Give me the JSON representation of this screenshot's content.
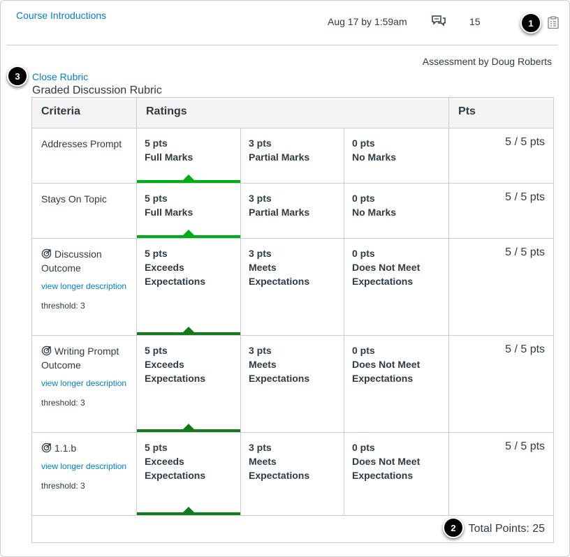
{
  "header": {
    "title_link": "Course Introductions",
    "date": "Aug 17 by 1:59am",
    "reply_count": "15",
    "reply_icon": "discussion-reply-icon",
    "rubric_icon": "rubric-clipboard-icon"
  },
  "callouts": [
    "1",
    "2",
    "3"
  ],
  "assessment_by": "Assessment by Doug Roberts",
  "close_rubric": "Close Rubric",
  "rubric_title": "Graded Discussion Rubric",
  "columns": {
    "criteria": "Criteria",
    "ratings": "Ratings",
    "pts": "Pts"
  },
  "colors": {
    "accent": "#0081c6",
    "selected_light": "#00ac18",
    "selected_dark": "#127a1b"
  },
  "rows": [
    {
      "criterion": "Addresses Prompt",
      "ratings": [
        {
          "pts": "5 pts",
          "label": "Full Marks"
        },
        {
          "pts": "3 pts",
          "label": "Partial Marks"
        },
        {
          "pts": "0 pts",
          "label": "No Marks"
        }
      ],
      "score": "5 / 5 pts"
    },
    {
      "criterion": "Stays On Topic",
      "ratings": [
        {
          "pts": "5 pts",
          "label": "Full Marks"
        },
        {
          "pts": "3 pts",
          "label": "Partial Marks"
        },
        {
          "pts": "0 pts",
          "label": "No Marks"
        }
      ],
      "score": "5 / 5 pts"
    },
    {
      "criterion": "Discussion Outcome",
      "link": "view longer description",
      "threshold": "threshold: 3",
      "ratings": [
        {
          "pts": "5 pts",
          "label": "Exceeds Expectations"
        },
        {
          "pts": "3 pts",
          "label": "Meets Expectations"
        },
        {
          "pts": "0 pts",
          "label": "Does Not Meet Expectations"
        }
      ],
      "score": "5 / 5 pts"
    },
    {
      "criterion": "Writing Prompt Outcome",
      "link": "view longer description",
      "threshold": "threshold: 3",
      "ratings": [
        {
          "pts": "5 pts",
          "label": "Exceeds Expectations"
        },
        {
          "pts": "3 pts",
          "label": "Meets Expectations"
        },
        {
          "pts": "0 pts",
          "label": "Does Not Meet Expectations"
        }
      ],
      "score": "5 / 5 pts"
    },
    {
      "criterion": "1.1.b",
      "link": "view longer description",
      "threshold": "threshold: 3",
      "ratings": [
        {
          "pts": "5 pts",
          "label": "Exceeds Expectations"
        },
        {
          "pts": "3 pts",
          "label": "Meets Expectations"
        },
        {
          "pts": "0 pts",
          "label": "Does Not Meet Expectations"
        }
      ],
      "score": "5 / 5 pts"
    }
  ],
  "total_points": "Total Points: 25"
}
